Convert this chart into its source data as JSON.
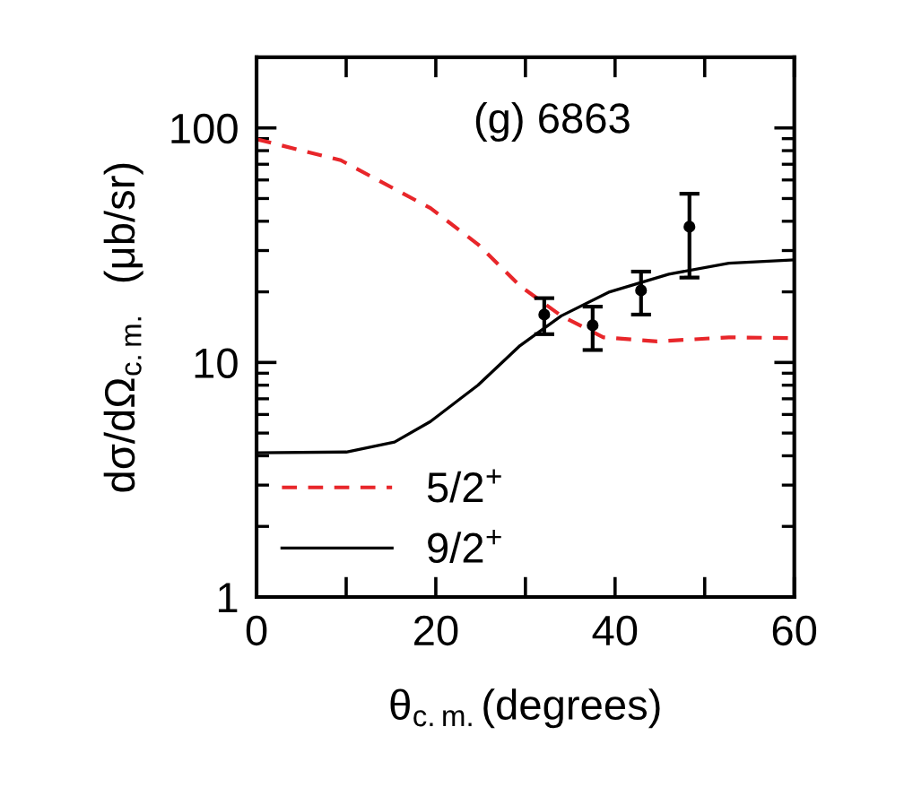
{
  "chart_data": {
    "type": "line",
    "xlabel": "θ$_{c.m.}$(degrees)",
    "ylabel": "dσ/dΩ$_{c.m.}$  (μb/sr)",
    "annotations": [
      "(g) 6863"
    ],
    "log": "y",
    "xlim": [
      0,
      60
    ],
    "ylim": [
      1,
      200
    ],
    "xticks": [
      0,
      {
        "value": 10,
        "label": null
      },
      20,
      {
        "value": 30,
        "label": null
      },
      40,
      {
        "value": 50,
        "label": null
      },
      60
    ],
    "yticks": [
      1,
      10,
      100
    ],
    "legend": "bottom left",
    "grid": false,
    "series": [
      {
        "name": "5/2$^{+}$",
        "line_style": "dashed",
        "color": "#e8262a",
        "x": [
          0,
          9.4,
          19.4,
          24.7,
          29.4,
          34,
          38.7,
          44.7,
          52.7,
          60
        ],
        "values": [
          89.5,
          72.8,
          45.5,
          31.9,
          21.2,
          15.8,
          12.8,
          12.3,
          12.8,
          12.7
        ]
      },
      {
        "name": "9/2$^{+}$",
        "line_style": "solid",
        "color": "#000000",
        "x": [
          0,
          10,
          15.4,
          19.4,
          24.7,
          29.4,
          34,
          39.4,
          46,
          52.7,
          60
        ],
        "values": [
          4.12,
          4.15,
          4.58,
          5.6,
          8.0,
          11.8,
          15.8,
          20.0,
          23.8,
          26.5,
          27.4
        ]
      },
      {
        "type": "scatter",
        "marker": "circle",
        "color": "#000000",
        "x": [
          32.1,
          37.5,
          42.9,
          48.3
        ],
        "values": [
          16.0,
          14.4,
          20.3,
          37.9
        ],
        "errors": [
          [
            13.2,
            18.8
          ],
          [
            11.3,
            17.3
          ],
          [
            16.0,
            24.4
          ],
          [
            23.0,
            52.4
          ]
        ]
      }
    ]
  }
}
